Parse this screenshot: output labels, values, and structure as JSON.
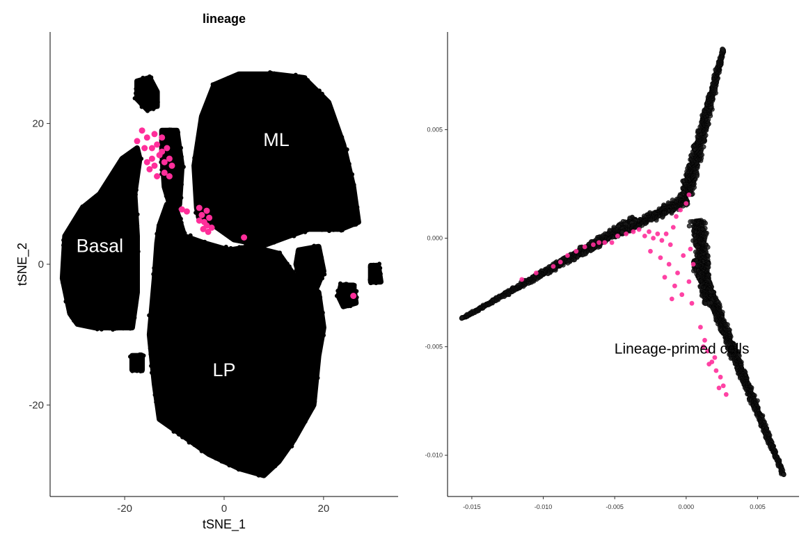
{
  "chart_data": [
    {
      "type": "scatter",
      "title": "lineage",
      "xlabel": "tSNE_1",
      "ylabel": "tSNE_2",
      "xlim": [
        -35,
        35
      ],
      "ylim": [
        -33,
        33
      ],
      "xticks": [
        -20,
        0,
        20
      ],
      "yticks": [
        -20,
        0,
        20
      ],
      "grid": false,
      "legend": "none",
      "colors": {
        "background_cells": "#000000",
        "highlighted_cells": "#ff2e9a",
        "label_fill": "#ffffff"
      },
      "labels": [
        {
          "text": "ML",
          "x": 10.5,
          "y": 17.7
        },
        {
          "text": "Basal",
          "x": -25,
          "y": 2.6
        },
        {
          "text": "LP",
          "x": 0,
          "y": -15
        }
      ],
      "clusters": [
        {
          "name": "ML",
          "shape": "blob",
          "points": [
            [
              -5.5,
              8
            ],
            [
              -6,
              14
            ],
            [
              -4.5,
              21
            ],
            [
              -2,
              25.5
            ],
            [
              3,
              27
            ],
            [
              10,
              27
            ],
            [
              16,
              26.5
            ],
            [
              21,
              23
            ],
            [
              24,
              17
            ],
            [
              26,
              11
            ],
            [
              27,
              6
            ],
            [
              23.5,
              5
            ],
            [
              17,
              5
            ],
            [
              13,
              4
            ],
            [
              8,
              2.7
            ],
            [
              2,
              3.5
            ],
            [
              -2,
              5.5
            ],
            [
              -5,
              6.5
            ]
          ]
        },
        {
          "name": "LP",
          "shape": "blob",
          "points": [
            [
              -13,
              5.5
            ],
            [
              -11.5,
              8.5
            ],
            [
              -9.5,
              7.5
            ],
            [
              -8,
              4
            ],
            [
              -4,
              3
            ],
            [
              1,
              2
            ],
            [
              5.5,
              2.5
            ],
            [
              11,
              1.5
            ],
            [
              14,
              -1.5
            ],
            [
              19,
              -4
            ],
            [
              20,
              -9
            ],
            [
              19,
              -13
            ],
            [
              18,
              -20
            ],
            [
              14,
              -25
            ],
            [
              11,
              -28
            ],
            [
              8,
              -30
            ],
            [
              3,
              -29
            ],
            [
              -3,
              -27
            ],
            [
              -8,
              -24.5
            ],
            [
              -13,
              -22
            ],
            [
              -14,
              -17
            ],
            [
              -15,
              -10
            ],
            [
              -14,
              -2
            ],
            [
              -13.5,
              3
            ]
          ]
        },
        {
          "name": "Basal",
          "shape": "blob",
          "points": [
            [
              -17.5,
              16.5
            ],
            [
              -20.5,
              15
            ],
            [
              -25,
              10
            ],
            [
              -28.5,
              8
            ],
            [
              -32,
              4
            ],
            [
              -32.5,
              -2
            ],
            [
              -31,
              -7
            ],
            [
              -29.5,
              -8.5
            ],
            [
              -26,
              -9
            ],
            [
              -22,
              -9
            ],
            [
              -18.5,
              -9
            ],
            [
              -17.5,
              -4
            ],
            [
              -17.5,
              4
            ],
            [
              -18,
              10
            ],
            [
              -17,
              15
            ]
          ]
        },
        {
          "name": "upper-island",
          "shape": "blob",
          "points": [
            [
              -17.5,
              26
            ],
            [
              -15,
              26.5
            ],
            [
              -13.5,
              24.5
            ],
            [
              -13.5,
              22.5
            ],
            [
              -15.5,
              22
            ],
            [
              -17.5,
              23.5
            ]
          ]
        },
        {
          "name": "neck",
          "shape": "blob",
          "points": [
            [
              -12.5,
              19
            ],
            [
              -9.5,
              19
            ],
            [
              -8.5,
              14
            ],
            [
              -9,
              8.5
            ],
            [
              -10.5,
              7.5
            ],
            [
              -12,
              11
            ],
            [
              -12.5,
              16
            ]
          ]
        },
        {
          "name": "small-right-clump",
          "shape": "blob",
          "points": [
            [
              15,
              2
            ],
            [
              19,
              2.5
            ],
            [
              20,
              -1
            ],
            [
              18.5,
              -3.5
            ],
            [
              15.5,
              -2.5
            ],
            [
              14.5,
              0
            ]
          ]
        },
        {
          "name": "far-right-dots",
          "shape": "blob",
          "points": [
            [
              23.5,
              -3
            ],
            [
              26,
              -3
            ],
            [
              26.5,
              -5.5
            ],
            [
              24,
              -6
            ],
            [
              23,
              -4.5
            ]
          ]
        },
        {
          "name": "tiny-right",
          "shape": "blob",
          "points": [
            [
              29.5,
              -0.2
            ],
            [
              31,
              -0.2
            ],
            [
              31.5,
              -2.5
            ],
            [
              29.5,
              -2.5
            ]
          ]
        },
        {
          "name": "lower-left-dots",
          "shape": "blob",
          "points": [
            [
              -18.5,
              -13
            ],
            [
              -16.5,
              -13
            ],
            [
              -16.5,
              -15
            ],
            [
              -18.5,
              -15
            ]
          ]
        }
      ],
      "highlighted": [
        [
          -17.5,
          17.5
        ],
        [
          -16.5,
          19
        ],
        [
          -15.5,
          18
        ],
        [
          -16,
          16.5
        ],
        [
          -14,
          18.5
        ],
        [
          -13.5,
          17
        ],
        [
          -12.5,
          18
        ],
        [
          -13,
          15.5
        ],
        [
          -14,
          14
        ],
        [
          -15,
          13.5
        ],
        [
          -12,
          14.5
        ],
        [
          -11.5,
          16.5
        ],
        [
          -11,
          15
        ],
        [
          -12,
          13
        ],
        [
          -13.5,
          12.5
        ],
        [
          -14.5,
          15
        ],
        [
          -15.5,
          14.5
        ],
        [
          -11,
          12.5
        ],
        [
          -10.5,
          14
        ],
        [
          -14.5,
          16.5
        ],
        [
          -12.5,
          16
        ],
        [
          -8.5,
          7.8
        ],
        [
          -7.5,
          7.5
        ],
        [
          -5,
          8
        ],
        [
          -3.5,
          7.6
        ],
        [
          -4.5,
          7
        ],
        [
          -3,
          6.6
        ],
        [
          -4,
          6
        ],
        [
          -3.5,
          5.5
        ],
        [
          -5,
          6.2
        ],
        [
          -2.5,
          5.2
        ],
        [
          -3.2,
          4.6
        ],
        [
          -4.2,
          5
        ],
        [
          26,
          -4.5
        ],
        [
          4,
          3.8
        ]
      ]
    },
    {
      "type": "scatter",
      "title": "",
      "xlabel": "",
      "ylabel": "",
      "xlim": [
        -0.0167,
        0.0079
      ],
      "ylim": [
        -0.0119,
        0.0095
      ],
      "xticks": [
        -0.015,
        -0.01,
        -0.005,
        0.0,
        0.005
      ],
      "xtick_labels": [
        "-0.015",
        "-0.010",
        "-0.005",
        "0.000",
        "0.005"
      ],
      "yticks": [
        0.005,
        0.0,
        -0.005,
        -0.01
      ],
      "ytick_labels": [
        "0.005",
        "0.000",
        "-0.005",
        "-0.010"
      ],
      "grid": false,
      "legend": "none",
      "colors": {
        "background_cells": "#1a1a1a",
        "highlighted_cells": "#ff2e9a"
      },
      "annotation": {
        "text": "Lineage-primed cells",
        "x": -0.0003,
        "y": -0.0051
      },
      "branches": [
        {
          "name": "upper-branch",
          "from": [
            0.0,
            0.002
          ],
          "to": [
            0.0026,
            0.0087
          ],
          "start_width": 0.0011,
          "end_width": 0.0003
        },
        {
          "name": "left-branch",
          "from": [
            -0.0035,
            0.0008
          ],
          "to": [
            -0.0157,
            -0.0037
          ],
          "start_width": 0.0009,
          "end_width": 0.0002
        },
        {
          "name": "lower-branch",
          "from": [
            0.0007,
            -0.001
          ],
          "to": [
            0.0068,
            -0.0109
          ],
          "start_width": 0.001,
          "end_width": 0.0003
        },
        {
          "name": "center-left",
          "from": [
            0.0,
            0.0018
          ],
          "to": [
            -0.0045,
            0.0003
          ],
          "start_width": 0.001,
          "end_width": 0.0006
        },
        {
          "name": "center-down",
          "from": [
            0.0008,
            0.0008
          ],
          "to": [
            0.0015,
            -0.003
          ],
          "start_width": 0.0012,
          "end_width": 0.0008
        }
      ],
      "highlighted": [
        [
          -0.0057,
          -0.0002
        ],
        [
          -0.0052,
          -0.0002
        ],
        [
          -0.0048,
          0.0001
        ],
        [
          -0.0042,
          0.0002
        ],
        [
          -0.0037,
          0.0003
        ],
        [
          -0.0033,
          0.0004
        ],
        [
          -0.0029,
          0.0001
        ],
        [
          -0.0026,
          0.0003
        ],
        [
          -0.0023,
          0.0
        ],
        [
          -0.002,
          0.0002
        ],
        [
          -0.0017,
          -0.0001
        ],
        [
          -0.0014,
          0.0002
        ],
        [
          -0.0011,
          -0.0003
        ],
        [
          -0.0009,
          0.0005
        ],
        [
          -0.0007,
          0.001
        ],
        [
          -0.0004,
          0.0013
        ],
        [
          0.0,
          0.0016
        ],
        [
          0.0002,
          0.002
        ],
        [
          -0.0025,
          -0.0006
        ],
        [
          -0.0018,
          -0.0009
        ],
        [
          -0.0012,
          -0.0012
        ],
        [
          -0.0006,
          -0.0016
        ],
        [
          -0.0015,
          -0.0018
        ],
        [
          -0.0008,
          -0.0022
        ],
        [
          -0.0003,
          -0.0026
        ],
        [
          0.0002,
          -0.002
        ],
        [
          0.0004,
          -0.003
        ],
        [
          -0.001,
          -0.0028
        ],
        [
          0.0005,
          -0.0012
        ],
        [
          0.0003,
          -0.0005
        ],
        [
          -0.0002,
          -0.0008
        ],
        [
          -0.0093,
          -0.0013
        ],
        [
          -0.0088,
          -0.0011
        ],
        [
          -0.0083,
          -0.0008
        ],
        [
          -0.0077,
          -0.0006
        ],
        [
          -0.0071,
          -0.0004
        ],
        [
          -0.0065,
          -0.0003
        ],
        [
          -0.0061,
          -0.0002
        ],
        [
          -0.0115,
          -0.0019
        ],
        [
          -0.0105,
          -0.0016
        ],
        [
          0.001,
          -0.0041
        ],
        [
          0.0013,
          -0.0047
        ],
        [
          0.0015,
          -0.0052
        ],
        [
          0.0018,
          -0.0057
        ],
        [
          0.0021,
          -0.0061
        ],
        [
          0.0024,
          -0.0064
        ],
        [
          0.0026,
          -0.0068
        ],
        [
          0.0028,
          -0.0072
        ],
        [
          0.0016,
          -0.0058
        ],
        [
          0.002,
          -0.0055
        ],
        [
          0.0023,
          -0.0069
        ],
        [
          0.0012,
          -0.005
        ]
      ]
    }
  ]
}
